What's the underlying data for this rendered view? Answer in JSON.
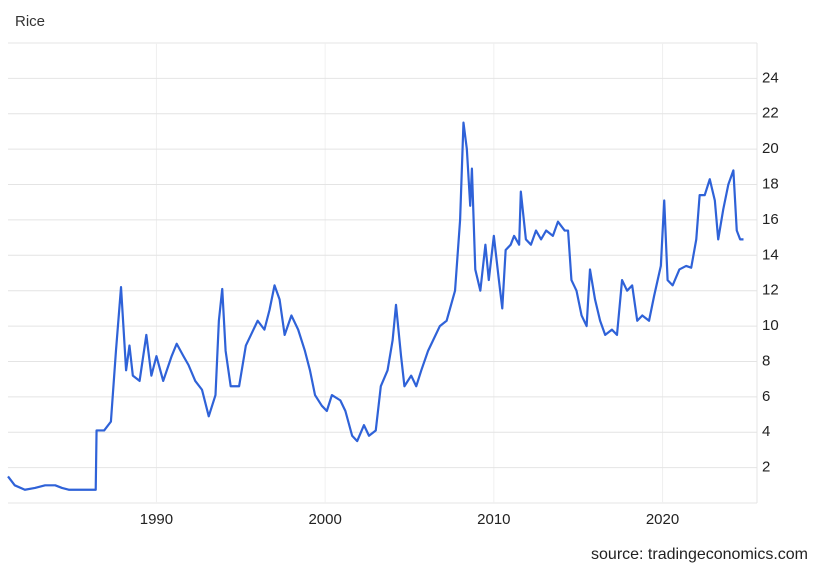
{
  "chart_data": {
    "type": "line",
    "title": "Rice",
    "source": "source: tradingeconomics.com",
    "x": [
      1981.2,
      1981.6,
      1982.2,
      1982.8,
      1983.4,
      1984.0,
      1984.4,
      1984.8,
      1986.4,
      1986.45,
      1986.9,
      1987.3,
      1987.6,
      1987.9,
      1988.2,
      1988.4,
      1988.6,
      1989.0,
      1989.4,
      1989.7,
      1990.0,
      1990.4,
      1990.9,
      1991.2,
      1991.6,
      1991.9,
      1992.3,
      1992.7,
      1993.1,
      1993.5,
      1993.7,
      1993.9,
      1994.1,
      1994.4,
      1994.9,
      1995.3,
      1995.6,
      1996.0,
      1996.4,
      1996.7,
      1997.0,
      1997.3,
      1997.6,
      1998.0,
      1998.4,
      1998.8,
      1999.1,
      1999.4,
      1999.8,
      2000.1,
      2000.4,
      2000.9,
      2001.2,
      2001.6,
      2001.9,
      2002.3,
      2002.6,
      2003.0,
      2003.3,
      2003.7,
      2004.0,
      2004.2,
      2004.5,
      2004.7,
      2005.1,
      2005.4,
      2005.7,
      2006.1,
      2006.4,
      2006.8,
      2007.2,
      2007.7,
      2008.0,
      2008.2,
      2008.4,
      2008.6,
      2008.7,
      2008.9,
      2009.2,
      2009.5,
      2009.7,
      2010.0,
      2010.3,
      2010.5,
      2010.7,
      2011.0,
      2011.2,
      2011.5,
      2011.6,
      2011.9,
      2012.2,
      2012.5,
      2012.8,
      2013.1,
      2013.5,
      2013.8,
      2014.2,
      2014.4,
      2014.6,
      2014.9,
      2015.2,
      2015.5,
      2015.7,
      2016.0,
      2016.3,
      2016.6,
      2017.0,
      2017.3,
      2017.6,
      2017.9,
      2018.2,
      2018.5,
      2018.8,
      2019.2,
      2019.5,
      2019.9,
      2020.1,
      2020.3,
      2020.6,
      2021.0,
      2021.4,
      2021.7,
      2022.0,
      2022.2,
      2022.5,
      2022.8,
      2023.1,
      2023.3,
      2023.6,
      2023.9,
      2024.2,
      2024.4,
      2024.6,
      2024.8
    ],
    "series": [
      {
        "name": "Rice",
        "color": "#2f62d8",
        "values": [
          1.5,
          1.0,
          0.75,
          0.85,
          1.0,
          1.0,
          0.85,
          0.75,
          0.75,
          4.1,
          4.1,
          4.6,
          8.6,
          12.2,
          7.5,
          8.9,
          7.2,
          6.9,
          9.5,
          7.2,
          8.3,
          6.9,
          8.3,
          9.0,
          8.3,
          7.8,
          6.9,
          6.4,
          4.9,
          6.1,
          10.3,
          12.1,
          8.6,
          6.6,
          6.6,
          8.9,
          9.5,
          10.3,
          9.8,
          10.9,
          12.3,
          11.5,
          9.5,
          10.6,
          9.8,
          8.6,
          7.5,
          6.1,
          5.5,
          5.2,
          6.1,
          5.8,
          5.2,
          3.8,
          3.5,
          4.4,
          3.8,
          4.1,
          6.6,
          7.5,
          9.2,
          11.2,
          8.3,
          6.6,
          7.2,
          6.6,
          7.5,
          8.6,
          9.2,
          10.0,
          10.3,
          12.0,
          16.0,
          21.5,
          20.0,
          16.8,
          18.9,
          13.2,
          12.0,
          14.6,
          12.6,
          15.1,
          12.6,
          11.0,
          14.3,
          14.6,
          15.1,
          14.6,
          17.6,
          14.9,
          14.6,
          15.4,
          14.9,
          15.4,
          15.1,
          15.9,
          15.4,
          15.4,
          12.6,
          12.0,
          10.6,
          10.0,
          13.2,
          11.5,
          10.3,
          9.5,
          9.8,
          9.5,
          12.6,
          12.0,
          12.3,
          10.3,
          10.6,
          10.3,
          11.7,
          13.4,
          17.1,
          12.6,
          12.3,
          13.2,
          13.4,
          13.3,
          14.9,
          17.4,
          17.4,
          18.3,
          17.1,
          14.9,
          16.6,
          18.0,
          18.8,
          15.4,
          14.9,
          14.9
        ]
      }
    ],
    "xlim": [
      1981.2,
      2025.6
    ],
    "xticks": [
      1990,
      2000,
      2010,
      2020
    ],
    "ylim": [
      0,
      26
    ],
    "yticks": [
      2,
      4,
      6,
      8,
      10,
      12,
      14,
      16,
      18,
      20,
      22,
      24
    ],
    "grid": true
  }
}
